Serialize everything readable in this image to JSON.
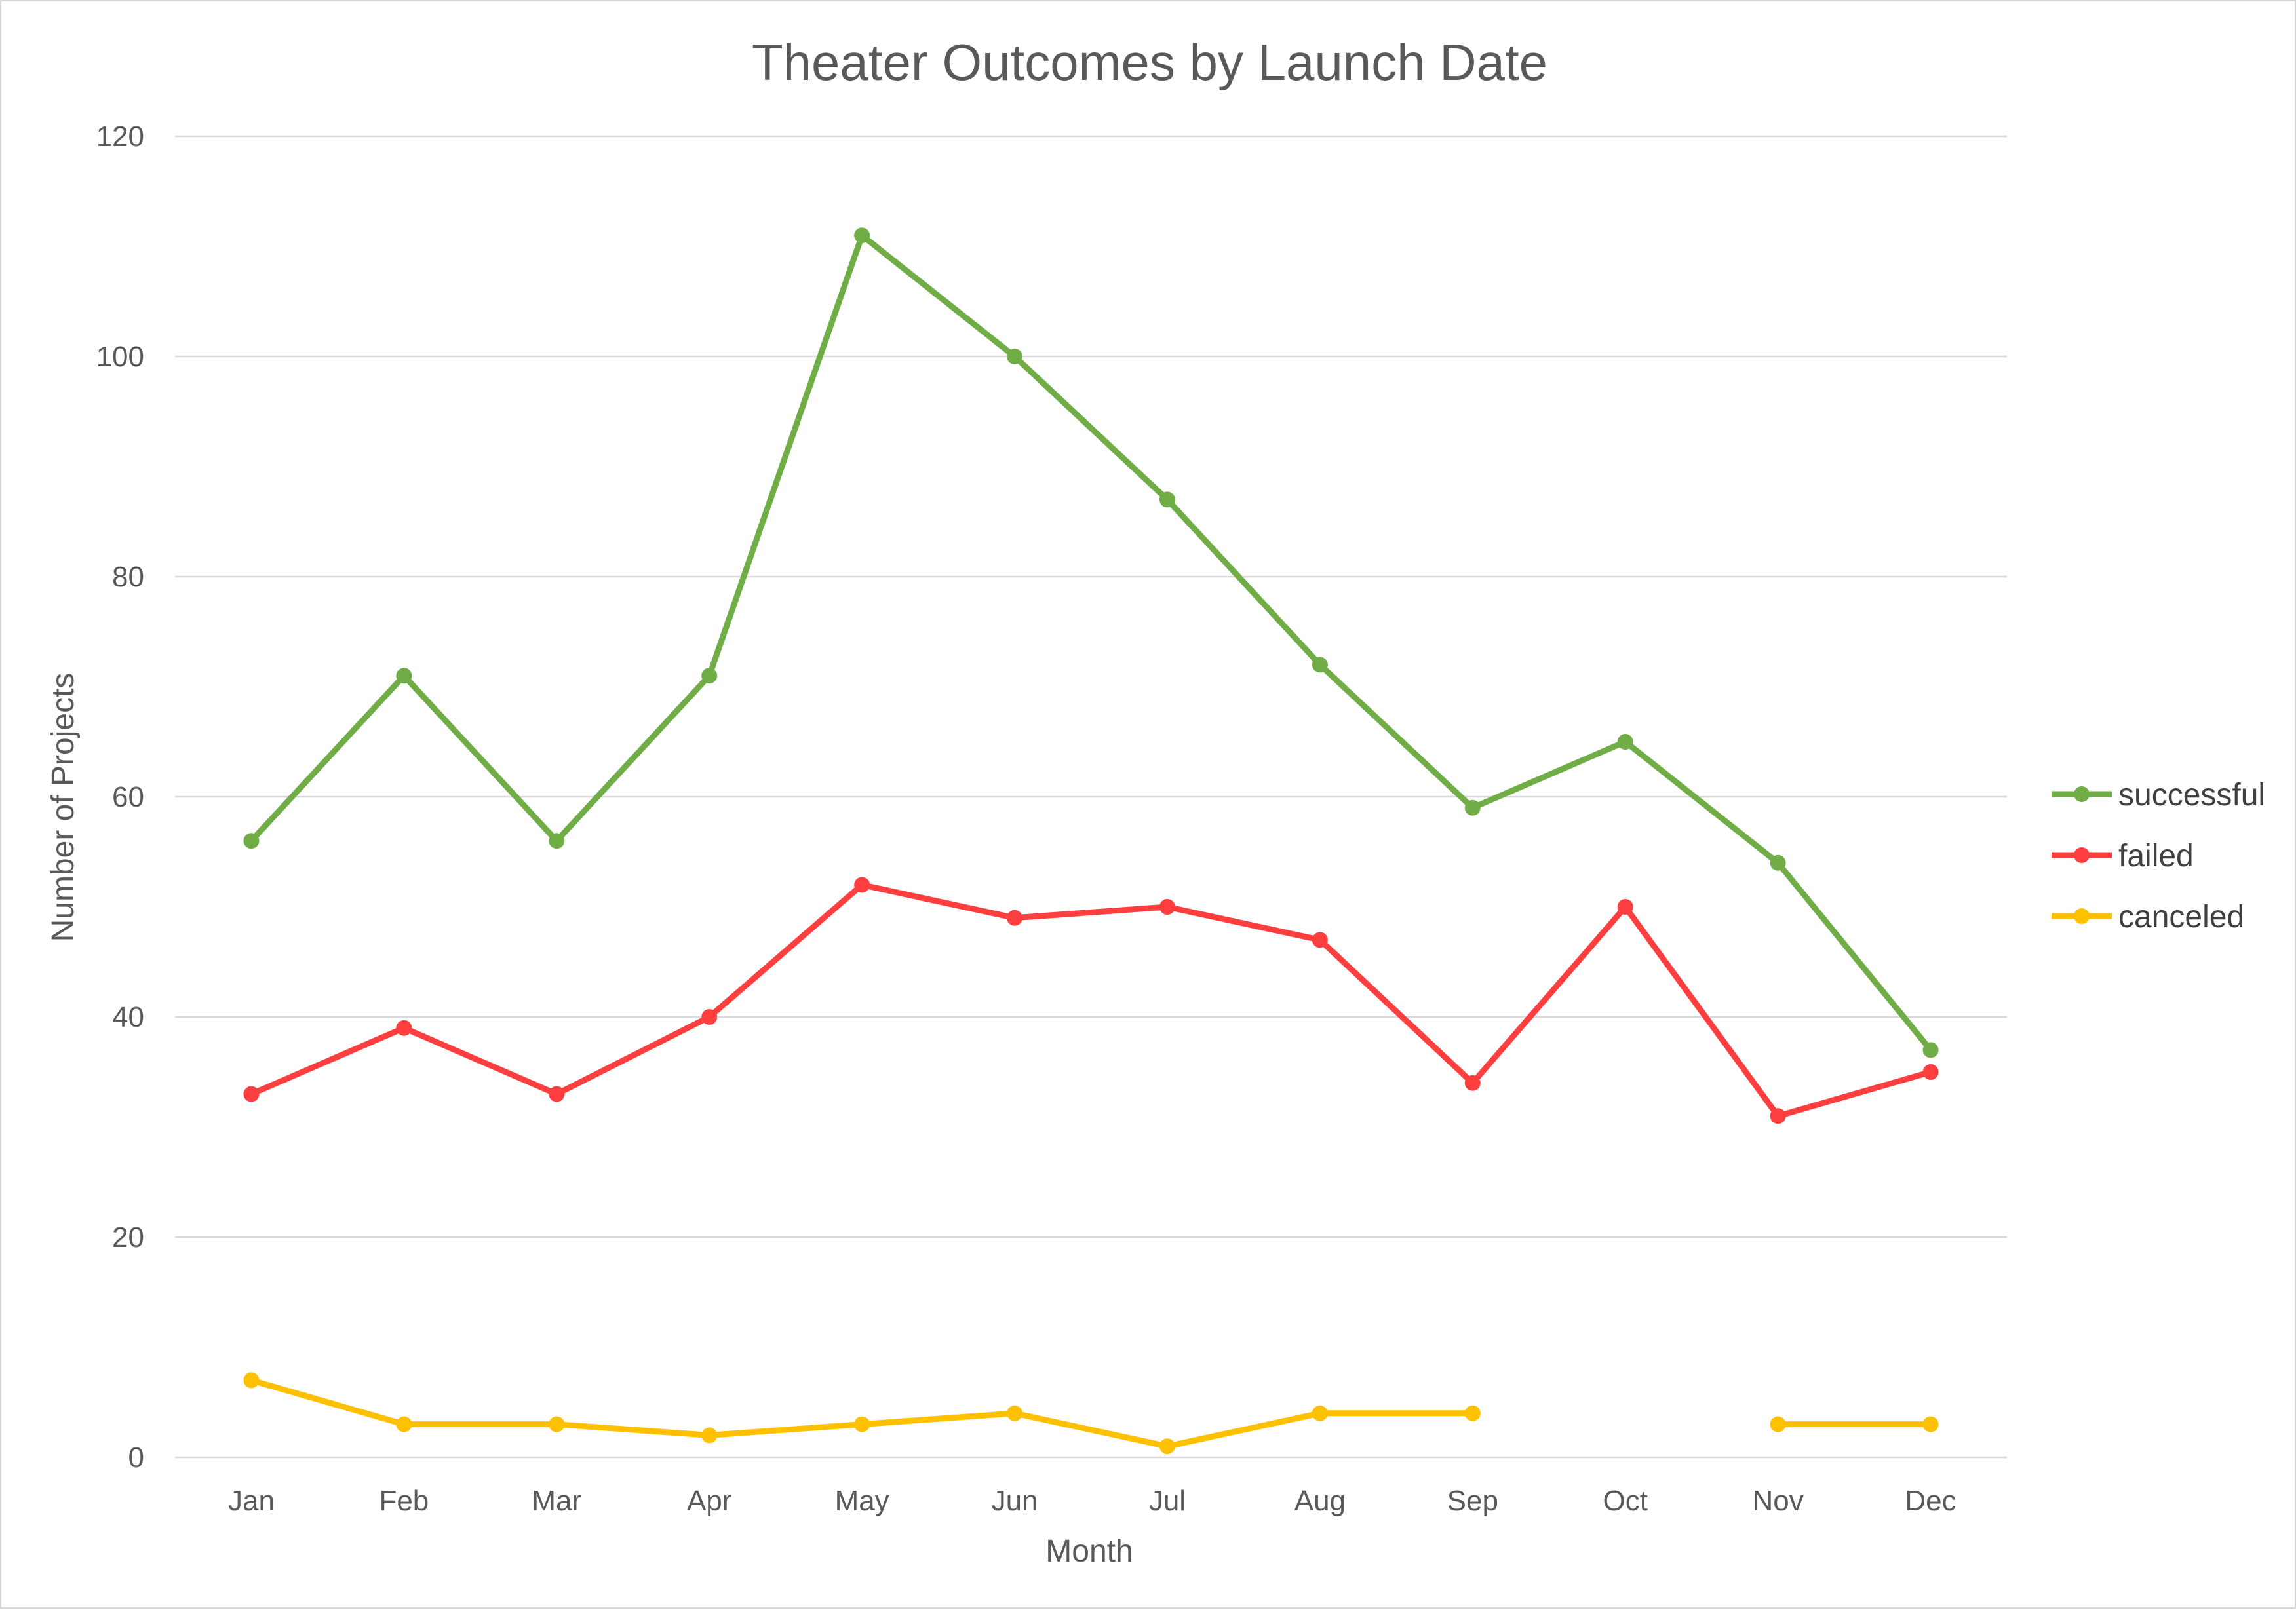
{
  "chart_data": {
    "type": "line",
    "title": "Theater Outcomes by Launch Date",
    "xlabel": "Month",
    "ylabel": "Number of Projects",
    "categories": [
      "Jan",
      "Feb",
      "Mar",
      "Apr",
      "May",
      "Jun",
      "Jul",
      "Aug",
      "Sep",
      "Oct",
      "Nov",
      "Dec"
    ],
    "ylim": [
      0,
      120
    ],
    "yticks": [
      0,
      20,
      40,
      60,
      80,
      100,
      120
    ],
    "grid": true,
    "legend_position": "right",
    "series": [
      {
        "name": "successful",
        "color": "#70ad47",
        "values": [
          56,
          71,
          56,
          71,
          111,
          100,
          87,
          72,
          59,
          65,
          54,
          37
        ]
      },
      {
        "name": "failed",
        "color": "#ff3f3f",
        "values": [
          33,
          39,
          33,
          40,
          52,
          49,
          50,
          47,
          34,
          50,
          31,
          35
        ]
      },
      {
        "name": "canceled",
        "color": "#ffc000",
        "values": [
          7,
          3,
          3,
          2,
          3,
          4,
          1,
          4,
          4,
          null,
          3,
          3
        ]
      }
    ]
  }
}
